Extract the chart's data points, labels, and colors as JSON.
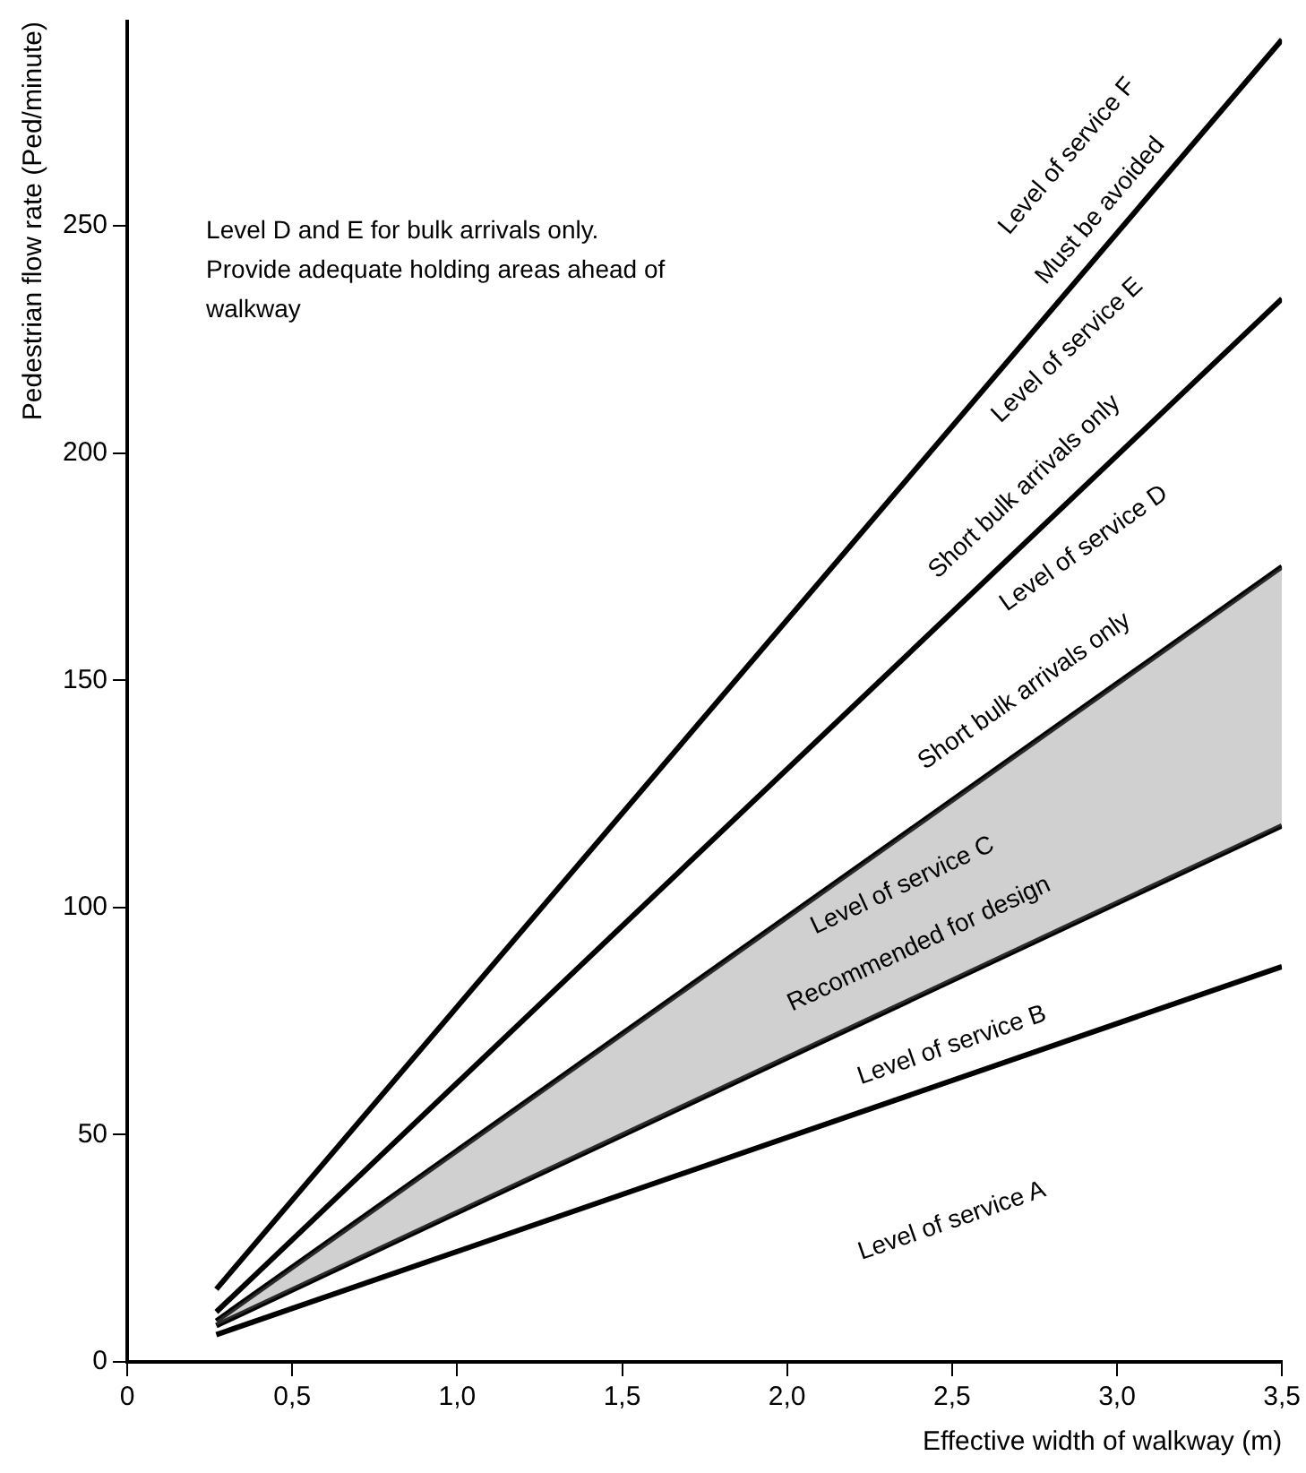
{
  "chart_data": {
    "type": "line",
    "xlabel": "Effective width of walkway (m)",
    "ylabel": "Pedestrian flow rate (Ped/minute)",
    "x": [
      0.27,
      3.5
    ],
    "series": [
      {
        "color": "#000000",
        "values": [
          16,
          291
        ]
      },
      {
        "color": "#000000",
        "values": [
          11,
          234
        ]
      },
      {
        "color": "#000000",
        "values": [
          9,
          175
        ],
        "lower": [
          8,
          118
        ],
        "upper": [
          9,
          175
        ]
      },
      {
        "color": "#000000",
        "values": [
          8,
          118
        ]
      },
      {
        "color": "#000000",
        "values": [
          6,
          87
        ]
      }
    ],
    "xlim": [
      0,
      3.5
    ],
    "xticks": [
      0,
      {
        "value": 0.5,
        "label": "0,5"
      },
      {
        "value": 1,
        "label": "1,0"
      },
      {
        "value": 1.5,
        "label": "1,5"
      },
      {
        "value": 2,
        "label": "2,0"
      },
      {
        "value": 2.5,
        "label": "2,5"
      },
      {
        "value": 3,
        "label": "3,0"
      },
      {
        "value": 3.5,
        "label": "3,5"
      }
    ],
    "ylim": [
      0,
      295
    ],
    "yticks": [
      0,
      50,
      100,
      150,
      200,
      250
    ],
    "grid": false,
    "legend": false,
    "marker": "none",
    "line_style": "solid",
    "annotations": [
      "Level D and E for bulk arrivals only. Provide adequate holding areas ahead of walkway",
      "Level of service F",
      "Must be avoided",
      "Level of service E",
      "Short bulk arrivals only",
      "Level of service D",
      "Short bulk arrivals only",
      "Level of service C",
      "Recommended for design",
      "Level of service B",
      "Level of service A"
    ]
  }
}
